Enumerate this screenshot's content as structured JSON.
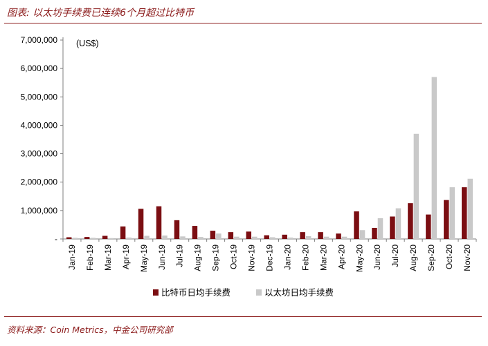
{
  "header": {
    "title": "图表: 以太坊手续费已连续6个月超过比特币"
  },
  "footer": {
    "source": "资料来源：Coin Metrics，中金公司研究部"
  },
  "colors": {
    "btc": "#7B0E12",
    "eth": "#C9C9C9",
    "accent": "#8B1A1A"
  },
  "chart_data": {
    "type": "bar",
    "unit_label": "(US$)",
    "categories": [
      "Jan-19",
      "Feb-19",
      "Mar-19",
      "Apr-19",
      "May-19",
      "Jun-19",
      "Jul-19",
      "Aug-19",
      "Sep-19",
      "Oct-19",
      "Nov-19",
      "Dec-19",
      "Jan-20",
      "Feb-20",
      "Mar-20",
      "Apr-20",
      "May-20",
      "Jun-20",
      "Jul-20",
      "Aug-20",
      "Sep-20",
      "Oct-20",
      "Nov-20"
    ],
    "series": [
      {
        "name": "比特币日均手续费",
        "color": "#7B0E12",
        "values": [
          60000,
          70000,
          110000,
          440000,
          1060000,
          1150000,
          660000,
          460000,
          290000,
          240000,
          260000,
          130000,
          150000,
          240000,
          240000,
          190000,
          970000,
          390000,
          790000,
          1260000,
          860000,
          1370000,
          1820000
        ]
      },
      {
        "name": "以太坊日均手续费",
        "color": "#C9C9C9",
        "values": [
          40000,
          40000,
          30000,
          50000,
          110000,
          120000,
          90000,
          70000,
          190000,
          80000,
          80000,
          60000,
          50000,
          100000,
          80000,
          80000,
          310000,
          730000,
          1080000,
          3700000,
          5700000,
          1820000,
          2120000
        ]
      }
    ],
    "yticks": [
      "-",
      "1,000,000",
      "2,000,000",
      "3,000,000",
      "4,000,000",
      "5,000,000",
      "6,000,000",
      "7,000,000"
    ],
    "ylim": [
      0,
      7000000
    ],
    "legend_position": "bottom",
    "grid": false
  }
}
